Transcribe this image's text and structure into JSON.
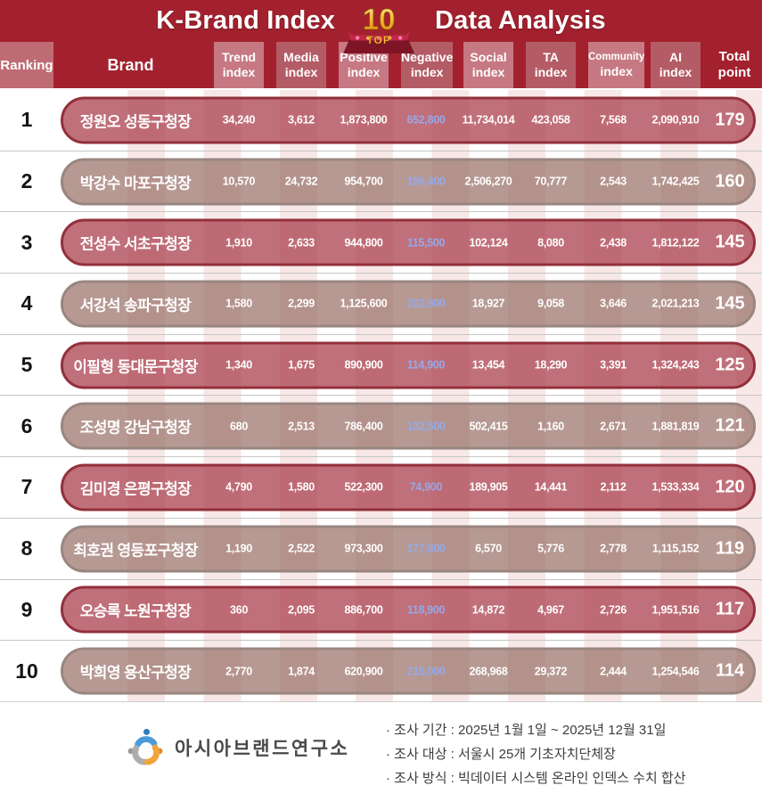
{
  "banner": {
    "title_left": "K-Brand Index",
    "title_right": "Data Analysis",
    "badge": {
      "number": "10",
      "label": "TOP"
    }
  },
  "chart_data": {
    "type": "table",
    "title": "K-Brand Index TOP 10 Data Analysis",
    "columns": [
      "Ranking",
      "Brand",
      "Trend index",
      "Media index",
      "Positive index",
      "Negative index",
      "Social index",
      "TA index",
      "Community index",
      "AI index",
      "Total point"
    ],
    "rows": [
      {
        "rank": "1",
        "name": "정원오 성동구청장",
        "trend": "34,240",
        "media": "3,612",
        "positive": "1,873,800",
        "negative": "652,800",
        "social": "11,734,014",
        "ta": "423,058",
        "community": "7,568",
        "ai": "2,090,910",
        "total": "179"
      },
      {
        "rank": "2",
        "name": "박강수 마포구청장",
        "trend": "10,570",
        "media": "24,732",
        "positive": "954,700",
        "negative": "196,400",
        "social": "2,506,270",
        "ta": "70,777",
        "community": "2,543",
        "ai": "1,742,425",
        "total": "160"
      },
      {
        "rank": "3",
        "name": "전성수 서초구청장",
        "trend": "1,910",
        "media": "2,633",
        "positive": "944,800",
        "negative": "115,500",
        "social": "102,124",
        "ta": "8,080",
        "community": "2,438",
        "ai": "1,812,122",
        "total": "145"
      },
      {
        "rank": "4",
        "name": "서강석 송파구청장",
        "trend": "1,580",
        "media": "2,299",
        "positive": "1,125,600",
        "negative": "202,800",
        "social": "18,927",
        "ta": "9,058",
        "community": "3,646",
        "ai": "2,021,213",
        "total": "145"
      },
      {
        "rank": "5",
        "name": "이필형 동대문구청장",
        "trend": "1,340",
        "media": "1,675",
        "positive": "890,900",
        "negative": "114,900",
        "social": "13,454",
        "ta": "18,290",
        "community": "3,391",
        "ai": "1,324,243",
        "total": "125"
      },
      {
        "rank": "6",
        "name": "조성명 강남구청장",
        "trend": "680",
        "media": "2,513",
        "positive": "786,400",
        "negative": "122,500",
        "social": "502,415",
        "ta": "1,160",
        "community": "2,671",
        "ai": "1,881,819",
        "total": "121"
      },
      {
        "rank": "7",
        "name": "김미경 은평구청장",
        "trend": "4,790",
        "media": "1,580",
        "positive": "522,300",
        "negative": "74,900",
        "social": "189,905",
        "ta": "14,441",
        "community": "2,112",
        "ai": "1,533,334",
        "total": "120"
      },
      {
        "rank": "8",
        "name": "최호권 영등포구청장",
        "trend": "1,190",
        "media": "2,522",
        "positive": "973,300",
        "negative": "177,800",
        "social": "6,570",
        "ta": "5,776",
        "community": "2,778",
        "ai": "1,115,152",
        "total": "119"
      },
      {
        "rank": "9",
        "name": "오승록 노원구청장",
        "trend": "360",
        "media": "2,095",
        "positive": "886,700",
        "negative": "118,900",
        "social": "14,872",
        "ta": "4,967",
        "community": "2,726",
        "ai": "1,951,516",
        "total": "117"
      },
      {
        "rank": "10",
        "name": "박희영 용산구청장",
        "trend": "2,770",
        "media": "1,874",
        "positive": "620,900",
        "negative": "215,000",
        "social": "268,968",
        "ta": "29,372",
        "community": "2,444",
        "ai": "1,254,546",
        "total": "114"
      }
    ]
  },
  "footer": {
    "institute_name": "아시아브랜드연구소",
    "notes": [
      "· 조사 기간 : 2025년 1월 1일 ~ 2025년 12월 31일",
      "· 조사 대상 : 서울시 25개 기초자치단체장",
      "· 조사 방식 : 빅데이터 시스템 온라인 인덱스 수치 합산"
    ]
  },
  "colors": {
    "banner_red": "#A3212E",
    "header_cell_light": "#C67983",
    "header_cell_mid": "#B45C66",
    "ranking_cell": "#BE6B74",
    "odd_row_border": "#93303C",
    "even_row_border": "#998680",
    "negative_value": "#97A9E8",
    "stripe_pink": "#F7E7E7",
    "gold": "#F5B832"
  }
}
